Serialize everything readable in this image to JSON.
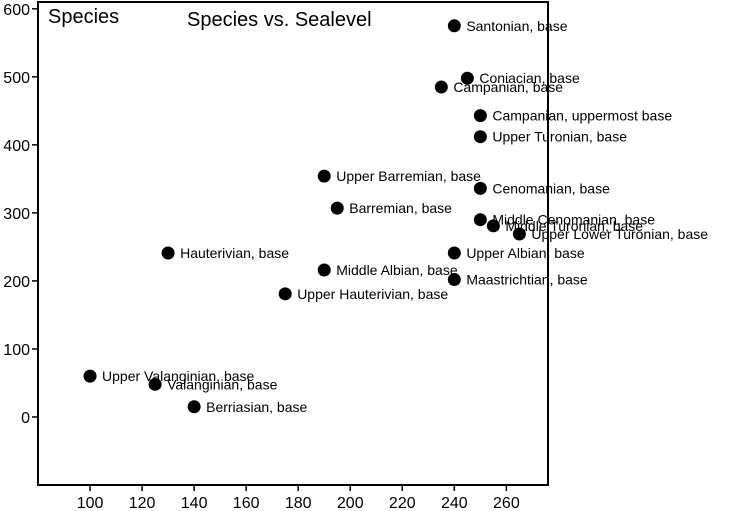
{
  "chart_data": {
    "type": "scatter",
    "title": "Species vs. Sealevel",
    "xlabel": "",
    "ylabel": "Species",
    "xlim": [
      80,
      276
    ],
    "ylim": [
      -100,
      610
    ],
    "xticks": [
      100,
      120,
      140,
      160,
      180,
      200,
      220,
      240,
      260
    ],
    "yticks": [
      0,
      100,
      200,
      300,
      400,
      500,
      600
    ],
    "grid": false,
    "legend": "none",
    "marker_color": "#000000",
    "points": [
      {
        "x": 240,
        "y": 575,
        "label": "Santonian, base"
      },
      {
        "x": 245,
        "y": 498,
        "label": "Coniacian, base"
      },
      {
        "x": 235,
        "y": 485,
        "label": "Campanian, base"
      },
      {
        "x": 250,
        "y": 443,
        "label": "Campanian, uppermost base"
      },
      {
        "x": 250,
        "y": 412,
        "label": "Upper Turonian, base"
      },
      {
        "x": 190,
        "y": 354,
        "label": "Upper Barremian, base"
      },
      {
        "x": 250,
        "y": 336,
        "label": "Cenomanian, base"
      },
      {
        "x": 195,
        "y": 307,
        "label": "Barremian, base"
      },
      {
        "x": 250,
        "y": 290,
        "label": "Middle Cenomanian, base"
      },
      {
        "x": 255,
        "y": 281,
        "label": "Middle Turonian, base"
      },
      {
        "x": 265,
        "y": 269,
        "label": "Upper Lower Turonian, base"
      },
      {
        "x": 130,
        "y": 241,
        "label": "Hauterivian, base"
      },
      {
        "x": 240,
        "y": 241,
        "label": "Upper Albian, base"
      },
      {
        "x": 190,
        "y": 216,
        "label": "Middle Albian, base"
      },
      {
        "x": 240,
        "y": 202,
        "label": "Maastrichtian, base"
      },
      {
        "x": 175,
        "y": 181,
        "label": "Upper Hauterivian, base"
      },
      {
        "x": 100,
        "y": 60,
        "label": "Upper Valanginian, base"
      },
      {
        "x": 125,
        "y": 48,
        "label": "Valanginian, base"
      },
      {
        "x": 140,
        "y": 15,
        "label": "Berriasian, base"
      }
    ]
  }
}
